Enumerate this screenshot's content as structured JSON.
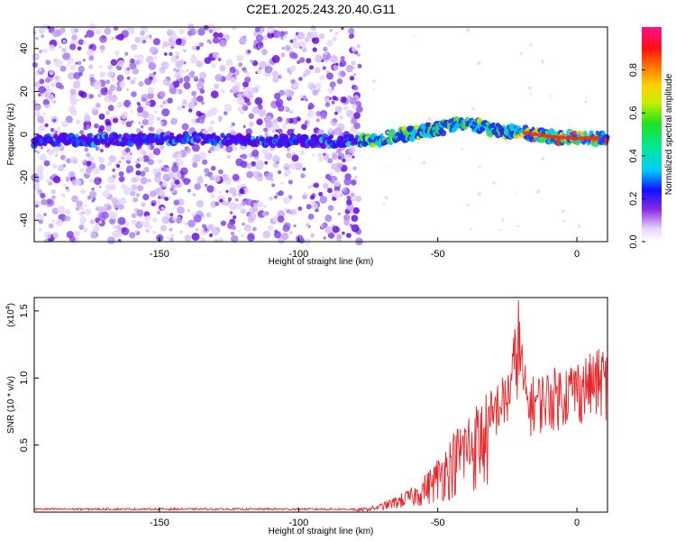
{
  "title": "C2E1.2025.243.20.40.G11",
  "colors": {
    "snr_line": "#e8262a",
    "scatter_light": "#c9a8f5",
    "scatter_dark": "#6a00e0",
    "trace_hot": "#ff2a00"
  },
  "chart_data": [
    {
      "type": "heatmap",
      "name": "spectrogram",
      "xlabel": "Height of straight line (km)",
      "ylabel": "Frequency (Hz)",
      "xlim": [
        -195,
        11
      ],
      "ylim": [
        -50,
        50
      ],
      "xticks": [
        -150,
        -100,
        -50,
        0
      ],
      "xtick_labels": [
        "-150",
        "-100",
        "-50",
        "0"
      ],
      "yticks": [
        -40,
        -20,
        0,
        20,
        40
      ],
      "ytick_labels": [
        "-40",
        "-20",
        "0",
        "20",
        "40"
      ],
      "noise_region_x": [
        -195,
        -78
      ],
      "trace": {
        "x": [
          -195,
          -180,
          -160,
          -140,
          -120,
          -100,
          -85,
          -75,
          -60,
          -50,
          -40,
          -35,
          -30,
          -20,
          -10,
          0,
          11
        ],
        "y": [
          -3,
          -2.5,
          -2.5,
          -2,
          -2.5,
          -3,
          -3.5,
          -3,
          0,
          3,
          5,
          4,
          2,
          1,
          -1,
          -2,
          -1.5
        ]
      },
      "colorbar": {
        "label": "Normalized spectral amplitude",
        "range": [
          0,
          1
        ],
        "ticks": [
          0.0,
          0.2,
          0.4,
          0.6,
          0.8
        ],
        "tick_labels": [
          "0.0",
          "0.2",
          "0.4",
          "0.6",
          "0.8"
        ]
      }
    },
    {
      "type": "line",
      "name": "snr",
      "xlabel": "Height of straight line (km)",
      "ylabel": "SNR (10 * v/v)",
      "multiplier": "(x10",
      "multiplier_exp": "4",
      "xlim": [
        -195,
        11
      ],
      "ylim": [
        0,
        1.6
      ],
      "xticks": [
        -150,
        -100,
        -50,
        0
      ],
      "xtick_labels": [
        "-150",
        "-100",
        "-50",
        "0"
      ],
      "yticks": [
        0.5,
        1.0,
        1.5
      ],
      "ytick_labels": [
        "0.5",
        "1.0",
        "1.5"
      ],
      "envelope": {
        "x": [
          -195,
          -80,
          -72,
          -65,
          -58,
          -52,
          -46,
          -40,
          -35,
          -30,
          -25,
          -21,
          -18,
          -12,
          -6,
          0,
          6,
          11
        ],
        "y": [
          0.02,
          0.02,
          0.05,
          0.12,
          0.2,
          0.35,
          0.55,
          0.75,
          0.85,
          0.95,
          1.05,
          1.55,
          1.0,
          1.05,
          1.1,
          1.15,
          1.2,
          1.25
        ]
      },
      "peak": {
        "x": -21,
        "y": 1.58
      }
    }
  ]
}
